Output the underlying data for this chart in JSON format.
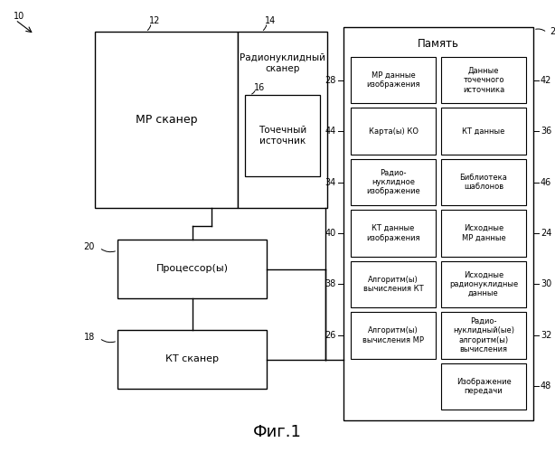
{
  "title": "Фиг.1",
  "bg_color": "#ffffff",
  "texts": {
    "mr_scanner": "МР сканер",
    "radio_scanner": "Радионуклидный\nсканер",
    "point_source": "Точечный\nисточник",
    "processor": "Процессор(ы)",
    "ct_scanner": "КТ сканер",
    "memory": "Память"
  },
  "mem_left_texts": [
    "МР данные\nизображения",
    "Карта(ы) КО",
    "Радио-\nнуклидное\nизображение",
    "КТ данные\nизображения",
    "Алгоритм(ы)\nвычисления КТ",
    "Алгоритм(ы)\nвычисления МР"
  ],
  "mem_right_texts": [
    "Данные\nточечного\nисточника",
    "КТ данные",
    "Библиотека\nшаблонов",
    "Исходные\nМР данные",
    "Исходные\nрадионуклидные\nданные",
    "Радио-\nнуклидный(ые)\nалгоритм(ы)\nвычисления",
    "Изображение\nпередачи"
  ],
  "labels_left": [
    "28",
    "44",
    "34",
    "40",
    "38",
    "26"
  ],
  "labels_right": [
    "42",
    "36",
    "46",
    "24",
    "30",
    "32",
    "48"
  ]
}
